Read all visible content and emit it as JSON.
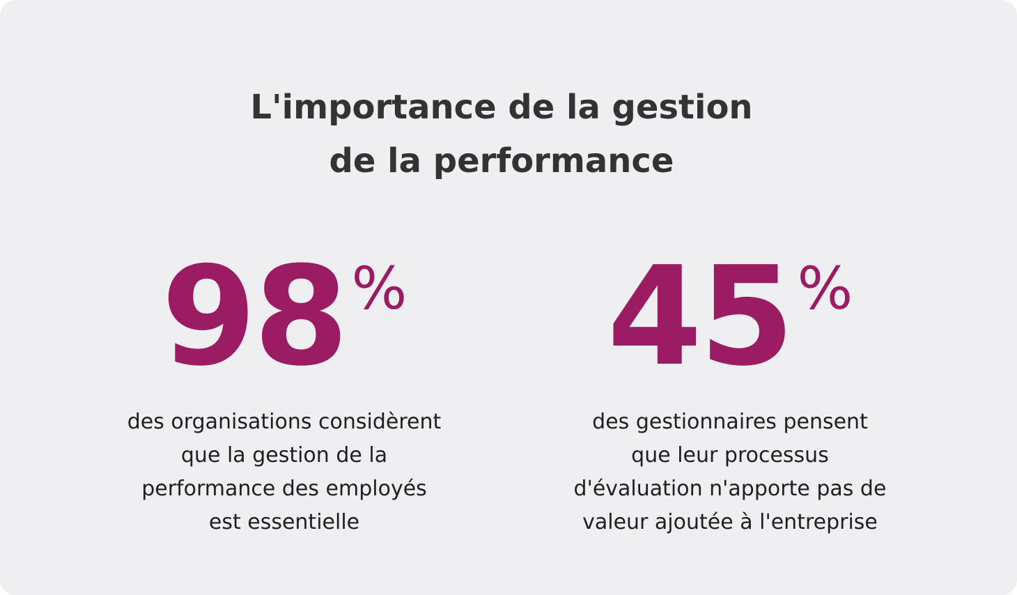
{
  "title": {
    "line1": "L'importance de la gestion",
    "line2": "de la performance"
  },
  "colors": {
    "accent": "#9c1c63",
    "background": "#efeef0",
    "title_text": "#333333",
    "body_text": "#1f1f1f"
  },
  "stats": [
    {
      "value": "98",
      "unit": "%",
      "description": [
        "des organisations considèrent",
        "que la gestion de la",
        "performance des employés",
        "est essentielle"
      ]
    },
    {
      "value": "45",
      "unit": "%",
      "description": [
        "des gestionnaires pensent",
        "que leur processus",
        "d'évaluation n'apporte pas de",
        "valeur ajoutée à l'entreprise"
      ]
    }
  ]
}
